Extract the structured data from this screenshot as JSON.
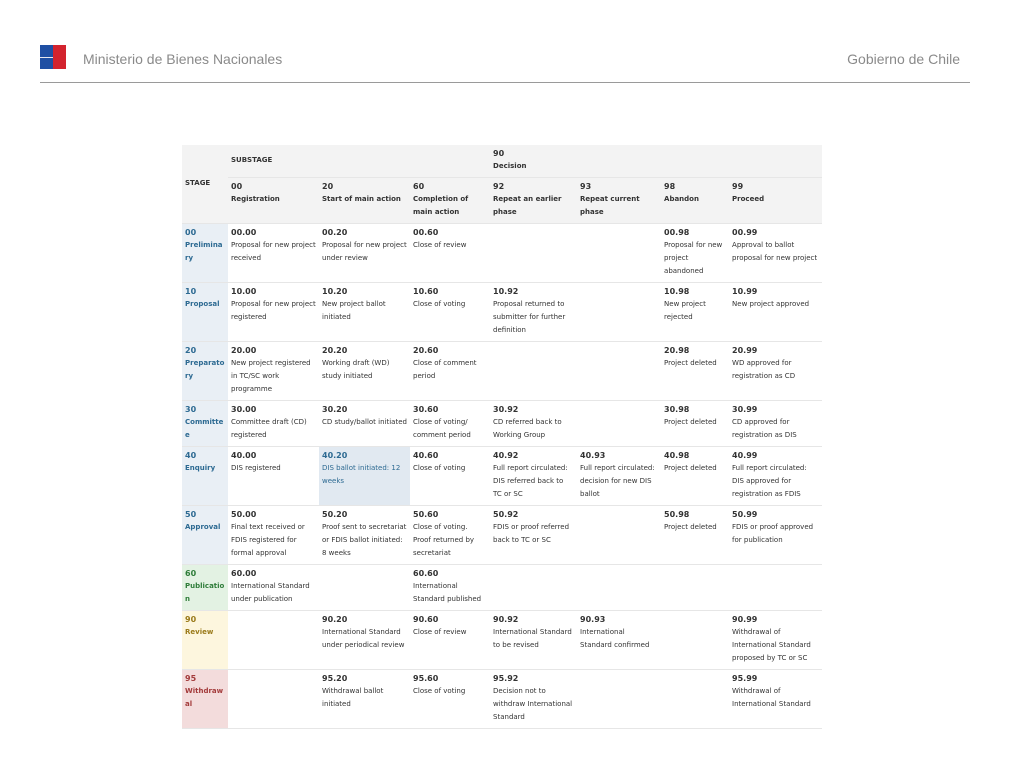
{
  "header": {
    "ministry": "Ministerio de Bienes Nacionales",
    "government": "Gobierno de Chile",
    "flag_colors": {
      "blue": "#1f4fa3",
      "red": "#d3232e",
      "white": "#ffffff"
    }
  },
  "table": {
    "stage_header": "STAGE",
    "substage_header": "SUBSTAGE",
    "decision_code": "90",
    "decision_label": "Decision",
    "columns": [
      {
        "code": "00",
        "label": "Registration"
      },
      {
        "code": "20",
        "label": "Start of main action"
      },
      {
        "code": "60",
        "label": "Completion of main action"
      },
      {
        "code": "92",
        "label": "Repeat an earlier phase"
      },
      {
        "code": "93",
        "label": "Repeat current phase"
      },
      {
        "code": "98",
        "label": "Abandon"
      },
      {
        "code": "99",
        "label": "Proceed"
      }
    ],
    "rows": [
      {
        "code": "00",
        "name": "Preliminary",
        "color": "blue",
        "cells": [
          {
            "code": "00.00",
            "desc": "Proposal for new project received"
          },
          {
            "code": "00.20",
            "desc": "Proposal for new project under review"
          },
          {
            "code": "00.60",
            "desc": "Close of review"
          },
          {
            "code": "",
            "desc": ""
          },
          {
            "code": "",
            "desc": ""
          },
          {
            "code": "00.98",
            "desc": "Proposal for new project abandoned"
          },
          {
            "code": "00.99",
            "desc": "Approval to ballot proposal for new project"
          }
        ]
      },
      {
        "code": "10",
        "name": "Proposal",
        "color": "blue",
        "cells": [
          {
            "code": "10.00",
            "desc": "Proposal for new project registered"
          },
          {
            "code": "10.20",
            "desc": "New project ballot initiated"
          },
          {
            "code": "10.60",
            "desc": "Close of voting"
          },
          {
            "code": "10.92",
            "desc": "Proposal returned to submitter for further definition"
          },
          {
            "code": "",
            "desc": ""
          },
          {
            "code": "10.98",
            "desc": "New project rejected"
          },
          {
            "code": "10.99",
            "desc": "New project approved"
          }
        ]
      },
      {
        "code": "20",
        "name": "Preparatory",
        "color": "blue",
        "cells": [
          {
            "code": "20.00",
            "desc": "New project registered in TC/SC work programme"
          },
          {
            "code": "20.20",
            "desc": "Working draft (WD) study initiated"
          },
          {
            "code": "20.60",
            "desc": "Close of comment period"
          },
          {
            "code": "",
            "desc": ""
          },
          {
            "code": "",
            "desc": ""
          },
          {
            "code": "20.98",
            "desc": "Project deleted"
          },
          {
            "code": "20.99",
            "desc": "WD approved for registration as CD"
          }
        ]
      },
      {
        "code": "30",
        "name": "Committee",
        "color": "blue",
        "cells": [
          {
            "code": "30.00",
            "desc": "Committee draft (CD) registered"
          },
          {
            "code": "30.20",
            "desc": "CD study/ballot initiated"
          },
          {
            "code": "30.60",
            "desc": "Close of voting/ comment period"
          },
          {
            "code": "30.92",
            "desc": "CD referred back to Working Group"
          },
          {
            "code": "",
            "desc": ""
          },
          {
            "code": "30.98",
            "desc": "Project deleted"
          },
          {
            "code": "30.99",
            "desc": "CD approved for registration as DIS"
          }
        ]
      },
      {
        "code": "40",
        "name": "Enquiry",
        "color": "blue",
        "cells": [
          {
            "code": "40.00",
            "desc": "DIS registered"
          },
          {
            "code": "40.20",
            "desc": "DIS ballot initiated: 12 weeks",
            "highlight": true
          },
          {
            "code": "40.60",
            "desc": "Close of voting"
          },
          {
            "code": "40.92",
            "desc": "Full report circulated: DIS referred back to TC or SC"
          },
          {
            "code": "40.93",
            "desc": "Full report circulated: decision for new DIS ballot"
          },
          {
            "code": "40.98",
            "desc": "Project deleted"
          },
          {
            "code": "40.99",
            "desc": "Full report circulated: DIS approved for registration as FDIS"
          }
        ]
      },
      {
        "code": "50",
        "name": "Approval",
        "color": "blue",
        "cells": [
          {
            "code": "50.00",
            "desc": "Final text received or FDIS registered for formal approval"
          },
          {
            "code": "50.20",
            "desc": "Proof sent to secretariat or FDIS ballot initiated: 8 weeks"
          },
          {
            "code": "50.60",
            "desc": "Close of voting. Proof returned by secretariat"
          },
          {
            "code": "50.92",
            "desc": "FDIS or proof referred back to TC or SC"
          },
          {
            "code": "",
            "desc": ""
          },
          {
            "code": "50.98",
            "desc": "Project deleted"
          },
          {
            "code": "50.99",
            "desc": "FDIS or proof approved for publication"
          }
        ]
      },
      {
        "code": "60",
        "name": "Publication",
        "color": "green",
        "cells": [
          {
            "code": "60.00",
            "desc": "International Standard under publication"
          },
          {
            "code": "",
            "desc": ""
          },
          {
            "code": "60.60",
            "desc": "International Standard published"
          },
          {
            "code": "",
            "desc": ""
          },
          {
            "code": "",
            "desc": ""
          },
          {
            "code": "",
            "desc": ""
          },
          {
            "code": "",
            "desc": ""
          }
        ]
      },
      {
        "code": "90",
        "name": "Review",
        "color": "yellow",
        "cells": [
          {
            "code": "",
            "desc": ""
          },
          {
            "code": "90.20",
            "desc": "International Standard under periodical review"
          },
          {
            "code": "90.60",
            "desc": "Close of review"
          },
          {
            "code": "90.92",
            "desc": "International Standard to be revised"
          },
          {
            "code": "90.93",
            "desc": "International Standard confirmed"
          },
          {
            "code": "",
            "desc": ""
          },
          {
            "code": "90.99",
            "desc": "Withdrawal of International Standard proposed by TC or SC"
          }
        ]
      },
      {
        "code": "95",
        "name": "Withdrawal",
        "color": "red",
        "cells": [
          {
            "code": "",
            "desc": ""
          },
          {
            "code": "95.20",
            "desc": "Withdrawal ballot initiated"
          },
          {
            "code": "95.60",
            "desc": "Close of voting"
          },
          {
            "code": "95.92",
            "desc": "Decision not to withdraw International Standard"
          },
          {
            "code": "",
            "desc": ""
          },
          {
            "code": "",
            "desc": ""
          },
          {
            "code": "95.99",
            "desc": "Withdrawal of International Standard"
          }
        ]
      }
    ]
  }
}
